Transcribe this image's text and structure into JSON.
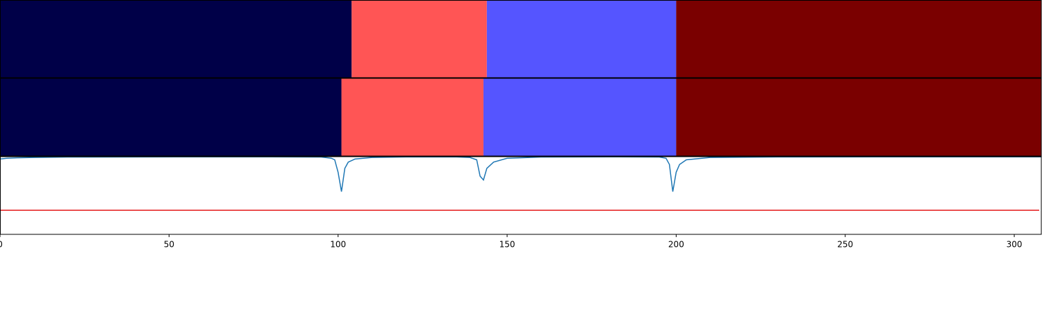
{
  "chart_data": {
    "type": "segmentation",
    "xlim": [
      0,
      308
    ],
    "xticks": [
      0,
      50,
      100,
      150,
      200,
      250,
      300
    ],
    "rows": [
      {
        "segments": [
          {
            "start": 0,
            "end": 104,
            "color": "#000048"
          },
          {
            "start": 104,
            "end": 144,
            "color": "#ff5555"
          },
          {
            "start": 144,
            "end": 200,
            "color": "#5555ff"
          },
          {
            "start": 200,
            "end": 308,
            "color": "#7a0000"
          }
        ]
      },
      {
        "segments": [
          {
            "start": 0,
            "end": 101,
            "color": "#000048"
          },
          {
            "start": 101,
            "end": 143,
            "color": "#ff5555"
          },
          {
            "start": 143,
            "end": 200,
            "color": "#5555ff"
          },
          {
            "start": 200,
            "end": 308,
            "color": "#7a0000"
          }
        ]
      }
    ],
    "line": {
      "ylim": [
        0,
        1
      ],
      "color": "#1f77b4",
      "x": [
        0,
        2,
        5,
        10,
        20,
        40,
        60,
        80,
        95,
        98,
        99,
        100,
        101,
        102,
        103,
        105,
        110,
        120,
        135,
        139,
        141,
        142,
        143,
        144,
        146,
        150,
        160,
        180,
        195,
        197,
        198,
        199,
        200,
        201,
        203,
        210,
        230,
        260,
        308
      ],
      "values": [
        0.97,
        0.98,
        0.985,
        0.99,
        0.995,
        0.997,
        0.998,
        0.998,
        0.995,
        0.98,
        0.96,
        0.8,
        0.55,
        0.85,
        0.93,
        0.97,
        0.99,
        0.997,
        0.997,
        0.99,
        0.96,
        0.75,
        0.7,
        0.85,
        0.93,
        0.98,
        0.995,
        0.998,
        0.995,
        0.98,
        0.9,
        0.55,
        0.8,
        0.9,
        0.96,
        0.99,
        0.997,
        0.998,
        0.998
      ],
      "threshold": 0.31,
      "threshold_color": "#e41a1c"
    }
  }
}
